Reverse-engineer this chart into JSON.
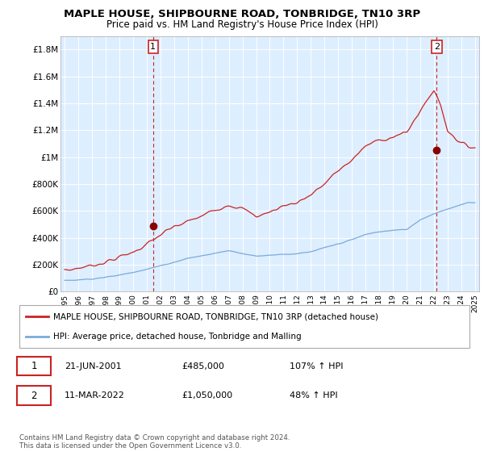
{
  "title": "MAPLE HOUSE, SHIPBOURNE ROAD, TONBRIDGE, TN10 3RP",
  "subtitle": "Price paid vs. HM Land Registry's House Price Index (HPI)",
  "hpi_color": "#7aaadc",
  "price_color": "#cc2222",
  "legend_line1": "MAPLE HOUSE, SHIPBOURNE ROAD, TONBRIDGE, TN10 3RP (detached house)",
  "legend_line2": "HPI: Average price, detached house, Tonbridge and Malling",
  "table_row1": [
    "1",
    "21-JUN-2001",
    "£485,000",
    "107% ↑ HPI"
  ],
  "table_row2": [
    "2",
    "11-MAR-2022",
    "£1,050,000",
    "48% ↑ HPI"
  ],
  "footer": "Contains HM Land Registry data © Crown copyright and database right 2024.\nThis data is licensed under the Open Government Licence v3.0.",
  "ylim": [
    0,
    1900000
  ],
  "yticks": [
    0,
    200000,
    400000,
    600000,
    800000,
    1000000,
    1200000,
    1400000,
    1600000,
    1800000
  ],
  "ytick_labels": [
    "£0",
    "£200K",
    "£400K",
    "£600K",
    "£800K",
    "£1M",
    "£1.2M",
    "£1.4M",
    "£1.6M",
    "£1.8M"
  ],
  "x_start_year": 1995,
  "x_end_year": 2025,
  "x_tick_years": [
    1995,
    1996,
    1997,
    1998,
    1999,
    2000,
    2001,
    2002,
    2003,
    2004,
    2005,
    2006,
    2007,
    2008,
    2009,
    2010,
    2011,
    2012,
    2013,
    2014,
    2015,
    2016,
    2017,
    2018,
    2019,
    2020,
    2021,
    2022,
    2023,
    2024,
    2025
  ],
  "sale1_x": 2001.47,
  "sale1_y": 485000,
  "sale2_x": 2022.19,
  "sale2_y": 1050000,
  "bg_color": "#ffffff",
  "plot_bg_color": "#ddeeff",
  "grid_color": "#ffffff",
  "title_fontsize": 9.5,
  "subtitle_fontsize": 8.5,
  "annotation_box_color": "#cc2222"
}
